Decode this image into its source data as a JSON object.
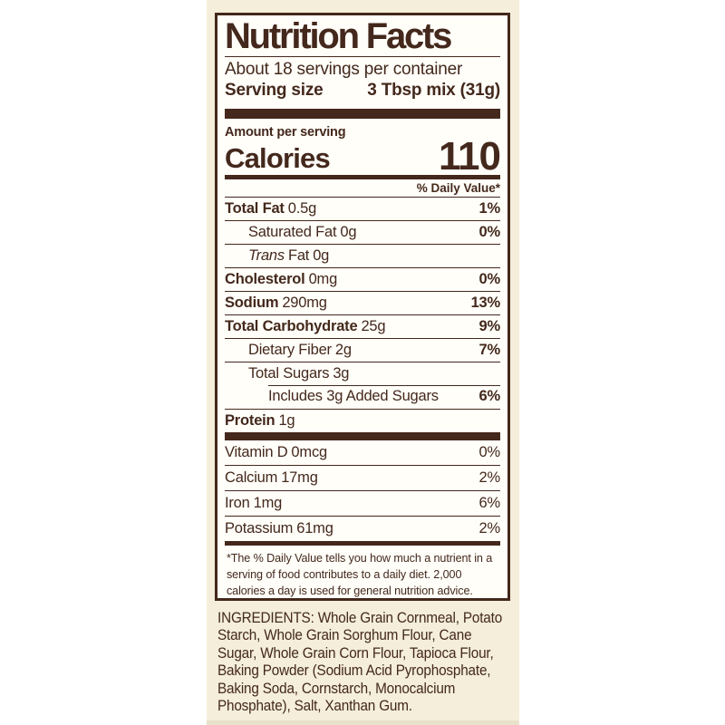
{
  "colors": {
    "brown": "#44281c",
    "cream": "#f4eedb",
    "label_bg": "#fffef9",
    "page_bg": "#ffffff",
    "strip_edge": "#e9e2ca"
  },
  "label": {
    "title": "Nutrition Facts",
    "servings_per_container": "About 18 servings per container",
    "serving_size_label": "Serving size",
    "serving_size_value": "3 Tbsp mix (31g)",
    "amount_per_serving": "Amount per serving",
    "calories_label": "Calories",
    "calories_value": "110",
    "daily_value_header": "% Daily Value*",
    "rows": [
      {
        "name": "Total Fat",
        "amount": "0.5g",
        "dv": "1%"
      },
      {
        "name": "Saturated Fat",
        "amount": "0g",
        "dv": "0%"
      },
      {
        "name_italic": "Trans",
        "name": "Fat",
        "amount": "0g",
        "dv": ""
      },
      {
        "name": "Cholesterol",
        "amount": "0mg",
        "dv": "0%"
      },
      {
        "name": "Sodium",
        "amount": "290mg",
        "dv": "13%"
      },
      {
        "name": "Total Carbohydrate",
        "amount": "25g",
        "dv": "9%"
      },
      {
        "name": "Dietary Fiber",
        "amount": "2g",
        "dv": "7%"
      },
      {
        "name": "Total Sugars",
        "amount": "3g",
        "dv": ""
      },
      {
        "name": "Includes 3g Added Sugars",
        "amount": "",
        "dv": "6%"
      },
      {
        "name": "Protein",
        "amount": "1g",
        "dv": ""
      }
    ],
    "vitamins": [
      {
        "name": "Vitamin D",
        "amount": "0mcg",
        "dv": "0%"
      },
      {
        "name": "Calcium",
        "amount": "17mg",
        "dv": "2%"
      },
      {
        "name": "Iron",
        "amount": "1mg",
        "dv": "6%"
      },
      {
        "name": "Potassium",
        "amount": "61mg",
        "dv": "2%"
      }
    ],
    "footnote": "*The % Daily Value tells you how much a nutrient in a serving of food contributes to a daily diet. 2,000 calories a day is used for general nutrition advice."
  },
  "ingredients": {
    "lines": [
      "INGREDIENTS: Whole Grain Cornmeal, Potato",
      "Starch, Whole Grain Sorghum Flour, Cane",
      "Sugar, Whole Grain Corn Flour, Tapioca Flour,",
      "Baking Powder (Sodium Acid Pyrophosphate,",
      "Baking Soda, Cornstarch, Monocalcium",
      "Phosphate), Salt, Xanthan Gum."
    ]
  }
}
